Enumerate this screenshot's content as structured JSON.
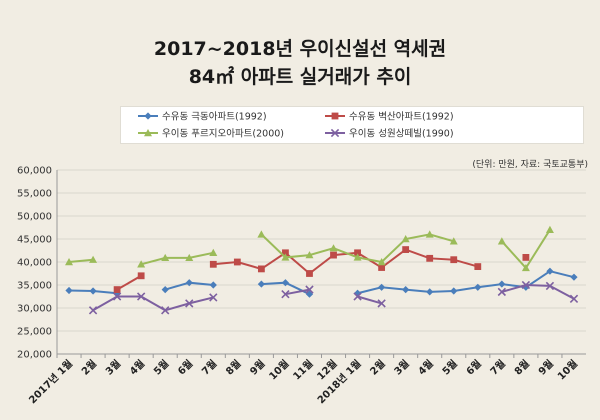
{
  "chart_data": {
    "type": "line",
    "title": "2017~2018년 우이신설선 역세권",
    "subtitle": "84㎡ 아파트 실거래가 추이",
    "unit_note": "(단위: 만원, 자료: 국토교통부)",
    "ylim": [
      20000,
      60000
    ],
    "yticks": [
      "20,000",
      "25,000",
      "30,000",
      "35,000",
      "40,000",
      "45,000",
      "50,000",
      "55,000",
      "60,000"
    ],
    "categories": [
      "2017년 1월",
      "2월",
      "3월",
      "4월",
      "5월",
      "6월",
      "7월",
      "8월",
      "9월",
      "10월",
      "11월",
      "12월",
      "2018년 1월",
      "2월",
      "3월",
      "4월",
      "5월",
      "6월",
      "7월",
      "8월",
      "9월",
      "10월"
    ],
    "grid": true,
    "legend_position": "top",
    "series": [
      {
        "name": "수유동 극동아파트(1992)",
        "color": "#4a7ebb",
        "marker": "diamond",
        "values": [
          33800,
          33700,
          33200,
          null,
          34000,
          35500,
          35000,
          null,
          35200,
          35500,
          33000,
          null,
          33200,
          34500,
          34000,
          33500,
          33700,
          34500,
          35200,
          34500,
          38000,
          36700
        ]
      },
      {
        "name": "수유동 벽산아파트(1992)",
        "color": "#be4b48",
        "marker": "square",
        "values": [
          null,
          null,
          34000,
          37000,
          null,
          null,
          39500,
          40000,
          38500,
          42000,
          37500,
          41500,
          42000,
          38800,
          42700,
          40800,
          40500,
          39000,
          null,
          41000,
          null,
          null
        ]
      },
      {
        "name": "우이동 푸르지오아파트(2000)",
        "color": "#9bbb59",
        "marker": "triangle",
        "values": [
          40000,
          40500,
          null,
          39500,
          40900,
          40900,
          42000,
          null,
          46000,
          41000,
          41500,
          43000,
          41000,
          40000,
          45000,
          46000,
          44500,
          null,
          44500,
          38700,
          47000,
          null
        ]
      },
      {
        "name": "우이동 성원상떼빌(1990)",
        "color": "#7d60a0",
        "marker": "x",
        "values": [
          null,
          29500,
          32500,
          32500,
          29500,
          31000,
          32300,
          null,
          null,
          33000,
          34000,
          null,
          32500,
          31000,
          null,
          null,
          null,
          null,
          33500,
          35000,
          34800,
          32000
        ]
      }
    ]
  }
}
